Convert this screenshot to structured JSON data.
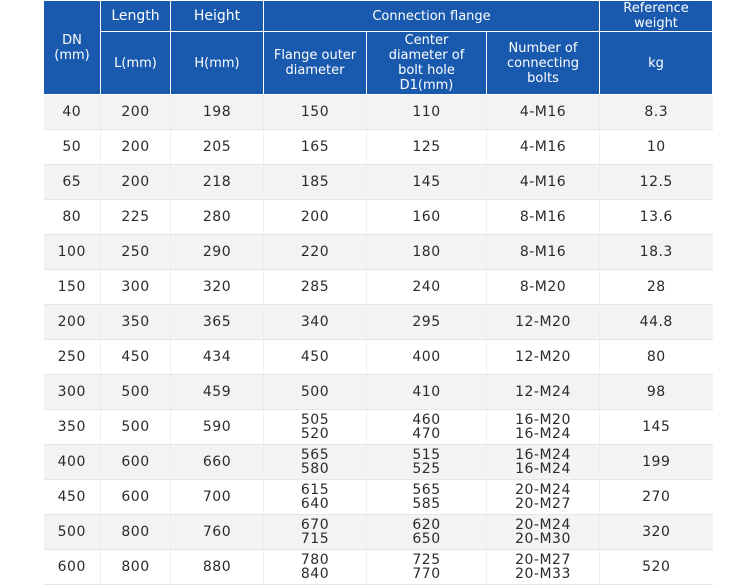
{
  "header": {
    "dn": "DN",
    "dn_unit": "(mm)",
    "length": "Length",
    "height": "Height",
    "connection_flange": "Connection flange",
    "reference_weight": "Reference weight",
    "length_unit": "L(mm)",
    "height_unit": "H(mm)",
    "flange_outer_diameter": "Flange outer diameter",
    "center_diameter": "Center diameter of bolt hole D1(mm)",
    "number_of_bolts": "Number of connecting bolts",
    "weight_unit": "kg"
  },
  "rows": [
    {
      "dn": "40",
      "length": "200",
      "height": "198",
      "flange_outer": [
        "150"
      ],
      "center_diameter": [
        "110"
      ],
      "bolts": [
        "4-M16"
      ],
      "weight": "8.3"
    },
    {
      "dn": "50",
      "length": "200",
      "height": "205",
      "flange_outer": [
        "165"
      ],
      "center_diameter": [
        "125"
      ],
      "bolts": [
        "4-M16"
      ],
      "weight": "10"
    },
    {
      "dn": "65",
      "length": "200",
      "height": "218",
      "flange_outer": [
        "185"
      ],
      "center_diameter": [
        "145"
      ],
      "bolts": [
        "4-M16"
      ],
      "weight": "12.5"
    },
    {
      "dn": "80",
      "length": "225",
      "height": "280",
      "flange_outer": [
        "200"
      ],
      "center_diameter": [
        "160"
      ],
      "bolts": [
        "8-M16"
      ],
      "weight": "13.6"
    },
    {
      "dn": "100",
      "length": "250",
      "height": "290",
      "flange_outer": [
        "220"
      ],
      "center_diameter": [
        "180"
      ],
      "bolts": [
        "8-M16"
      ],
      "weight": "18.3"
    },
    {
      "dn": "150",
      "length": "300",
      "height": "320",
      "flange_outer": [
        "285"
      ],
      "center_diameter": [
        "240"
      ],
      "bolts": [
        "8-M20"
      ],
      "weight": "28"
    },
    {
      "dn": "200",
      "length": "350",
      "height": "365",
      "flange_outer": [
        "340"
      ],
      "center_diameter": [
        "295"
      ],
      "bolts": [
        "12-M20"
      ],
      "weight": "44.8"
    },
    {
      "dn": "250",
      "length": "450",
      "height": "434",
      "flange_outer": [
        "450"
      ],
      "center_diameter": [
        "400"
      ],
      "bolts": [
        "12-M20"
      ],
      "weight": "80"
    },
    {
      "dn": "300",
      "length": "500",
      "height": "459",
      "flange_outer": [
        "500"
      ],
      "center_diameter": [
        "410"
      ],
      "bolts": [
        "12-M24"
      ],
      "weight": "98"
    },
    {
      "dn": "350",
      "length": "500",
      "height": "590",
      "flange_outer": [
        "505",
        "520"
      ],
      "center_diameter": [
        "460",
        "470"
      ],
      "bolts": [
        "16-M20",
        "16-M24"
      ],
      "weight": "145"
    },
    {
      "dn": "400",
      "length": "600",
      "height": "660",
      "flange_outer": [
        "565",
        "580"
      ],
      "center_diameter": [
        "515",
        "525"
      ],
      "bolts": [
        "16-M24",
        "16-M24"
      ],
      "weight": "199"
    },
    {
      "dn": "450",
      "length": "600",
      "height": "700",
      "flange_outer": [
        "615",
        "640"
      ],
      "center_diameter": [
        "565",
        "585"
      ],
      "bolts": [
        "20-M24",
        "20-M27"
      ],
      "weight": "270"
    },
    {
      "dn": "500",
      "length": "800",
      "height": "760",
      "flange_outer": [
        "670",
        "715"
      ],
      "center_diameter": [
        "620",
        "650"
      ],
      "bolts": [
        "20-M24",
        "20-M30"
      ],
      "weight": "320"
    },
    {
      "dn": "600",
      "length": "800",
      "height": "880",
      "flange_outer": [
        "780",
        "840"
      ],
      "center_diameter": [
        "725",
        "770"
      ],
      "bolts": [
        "20-M27",
        "20-M33"
      ],
      "weight": "520"
    }
  ]
}
